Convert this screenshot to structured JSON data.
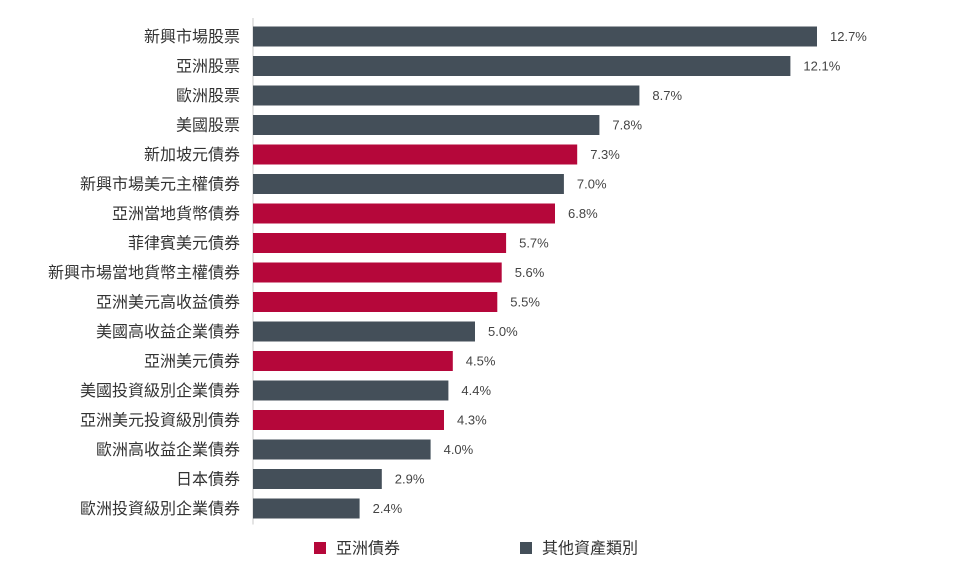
{
  "chart_data": {
    "type": "bar",
    "orientation": "horizontal",
    "categories": [
      "新興市場股票",
      "亞洲股票",
      "歐洲股票",
      "美國股票",
      "新加坡元債券",
      "新興市場美元主權債券",
      "亞洲當地貨幣債券",
      "菲律賓美元債券",
      "新興市場當地貨幣主權債券",
      "亞洲美元高收益債券",
      "美國高收益企業債券",
      "亞洲美元債券",
      "美國投資級別企業債券",
      "亞洲美元投資級別債券",
      "歐洲高收益企業債券",
      "日本債券",
      "歐洲投資級別企業債券"
    ],
    "values": [
      12.7,
      12.1,
      8.7,
      7.8,
      7.3,
      7.0,
      6.8,
      5.7,
      5.6,
      5.5,
      5.0,
      4.5,
      4.4,
      4.3,
      4.0,
      2.9,
      2.4
    ],
    "value_labels": [
      "12.7%",
      "12.1%",
      "8.7%",
      "7.8%",
      "7.3%",
      "7.0%",
      "6.8%",
      "5.7%",
      "5.6%",
      "5.5%",
      "5.0%",
      "4.5%",
      "4.4%",
      "4.3%",
      "4.0%",
      "2.9%",
      "2.4%"
    ],
    "groups": [
      1,
      1,
      1,
      1,
      0,
      1,
      0,
      0,
      0,
      0,
      1,
      0,
      1,
      0,
      1,
      1,
      1
    ],
    "series": [
      {
        "name": "亞洲債券",
        "color": "#b5073a"
      },
      {
        "name": "其他資產類別",
        "color": "#444f59"
      }
    ],
    "xlim": [
      0,
      12.7
    ],
    "grid": false,
    "legend_position": "bottom"
  }
}
